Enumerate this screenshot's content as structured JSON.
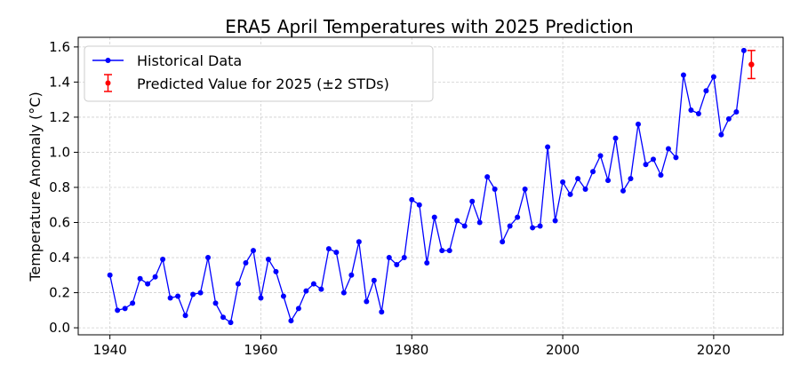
{
  "chart_data": {
    "type": "line",
    "title": "ERA5 April Temperatures with 2025 Prediction",
    "xlabel": "",
    "ylabel": "Temperature Anomaly (°C)",
    "xlim": [
      1935.8,
      2029.2
    ],
    "ylim": [
      -0.04,
      1.655
    ],
    "xticks": [
      1940,
      1960,
      1980,
      2000,
      2020
    ],
    "yticks": [
      0.0,
      0.2,
      0.4,
      0.6,
      0.8,
      1.0,
      1.2,
      1.4,
      1.6
    ],
    "grid": true,
    "legend_position": "top-left",
    "series": [
      {
        "name": "Historical Data",
        "color": "#0000ff",
        "x": [
          1940,
          1941,
          1942,
          1943,
          1944,
          1945,
          1946,
          1947,
          1948,
          1949,
          1950,
          1951,
          1952,
          1953,
          1954,
          1955,
          1956,
          1957,
          1958,
          1959,
          1960,
          1961,
          1962,
          1963,
          1964,
          1965,
          1966,
          1967,
          1968,
          1969,
          1970,
          1971,
          1972,
          1973,
          1974,
          1975,
          1976,
          1977,
          1978,
          1979,
          1980,
          1981,
          1982,
          1983,
          1984,
          1985,
          1986,
          1987,
          1988,
          1989,
          1990,
          1991,
          1992,
          1993,
          1994,
          1995,
          1996,
          1997,
          1998,
          1999,
          2000,
          2001,
          2002,
          2003,
          2004,
          2005,
          2006,
          2007,
          2008,
          2009,
          2010,
          2011,
          2012,
          2013,
          2014,
          2015,
          2016,
          2017,
          2018,
          2019,
          2020,
          2021,
          2022,
          2023,
          2024
        ],
        "values": [
          0.3,
          0.1,
          0.11,
          0.14,
          0.28,
          0.25,
          0.29,
          0.39,
          0.17,
          0.18,
          0.07,
          0.19,
          0.2,
          0.4,
          0.14,
          0.06,
          0.03,
          0.25,
          0.37,
          0.44,
          0.17,
          0.39,
          0.32,
          0.18,
          0.04,
          0.11,
          0.21,
          0.25,
          0.22,
          0.45,
          0.43,
          0.2,
          0.3,
          0.49,
          0.15,
          0.27,
          0.09,
          0.4,
          0.36,
          0.4,
          0.73,
          0.7,
          0.37,
          0.63,
          0.44,
          0.44,
          0.61,
          0.58,
          0.72,
          0.6,
          0.86,
          0.79,
          0.49,
          0.58,
          0.63,
          0.79,
          0.57,
          0.58,
          1.03,
          0.61,
          0.83,
          0.76,
          0.85,
          0.79,
          0.89,
          0.98,
          0.84,
          1.08,
          0.78,
          0.85,
          1.16,
          0.93,
          0.96,
          0.87,
          1.02,
          0.97,
          1.44,
          1.24,
          1.22,
          1.35,
          1.43,
          1.1,
          1.19,
          1.23,
          1.58
        ]
      },
      {
        "name": "Predicted Value for 2025 (±2 STDs)",
        "color": "#ff0000",
        "x": [
          2025
        ],
        "values": [
          1.5
        ],
        "error": [
          0.08
        ]
      }
    ]
  }
}
